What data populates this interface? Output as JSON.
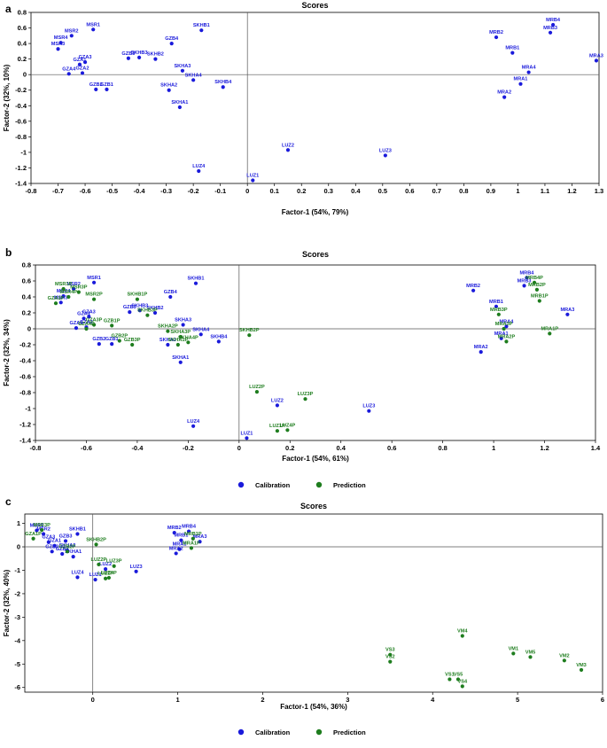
{
  "figure": {
    "panel_labels": [
      "a",
      "b",
      "c"
    ]
  },
  "colors": {
    "calibration": "#1a1adb",
    "prediction": "#1e7d1e",
    "axis": "#000000",
    "zero_line": "#555555"
  },
  "chart_data": [
    {
      "panel": "a",
      "type": "scatter",
      "title": "Scores",
      "xlabel": "Factor-1 (54%, 79%)",
      "ylabel": "Factor-2 (32%, 10%)",
      "xlim": [
        -0.8,
        1.3
      ],
      "ylim": [
        -1.4,
        0.8
      ],
      "xticks": [
        -0.8,
        -0.7,
        -0.6,
        -0.5,
        -0.4,
        -0.3,
        -0.2,
        -0.1,
        0,
        0.1,
        0.2,
        0.3,
        0.4,
        0.5,
        0.6,
        0.7,
        0.8,
        0.9,
        1,
        1.1,
        1.2,
        1.3
      ],
      "yticks": [
        -1.4,
        -1.2,
        -1,
        -0.8,
        -0.6,
        -0.4,
        -0.2,
        0,
        0.2,
        0.4,
        0.6,
        0.8
      ],
      "legend": null,
      "series": [
        {
          "name": "Calibration",
          "points": [
            {
              "label": "MSR1",
              "x": -0.57,
              "y": 0.58
            },
            {
              "label": "MSR2",
              "x": -0.65,
              "y": 0.5
            },
            {
              "label": "MSR4",
              "x": -0.69,
              "y": 0.41
            },
            {
              "label": "MSR3",
              "x": -0.7,
              "y": 0.33
            },
            {
              "label": "GZA3",
              "x": -0.6,
              "y": 0.16
            },
            {
              "label": "GZA1",
              "x": -0.62,
              "y": 0.13
            },
            {
              "label": "GZA4",
              "x": -0.66,
              "y": 0.01
            },
            {
              "label": "GZA2",
              "x": -0.61,
              "y": 0.02
            },
            {
              "label": "GZB2",
              "x": -0.56,
              "y": -0.19
            },
            {
              "label": "GZB1",
              "x": -0.52,
              "y": -0.19
            },
            {
              "label": "GZB3",
              "x": -0.44,
              "y": 0.21
            },
            {
              "label": "SKHB3",
              "x": -0.4,
              "y": 0.22
            },
            {
              "label": "SKHB2",
              "x": -0.34,
              "y": 0.2
            },
            {
              "label": "GZB4",
              "x": -0.28,
              "y": 0.4
            },
            {
              "label": "SKHB1",
              "x": -0.17,
              "y": 0.57
            },
            {
              "label": "SKHA3",
              "x": -0.24,
              "y": 0.05
            },
            {
              "label": "SKHA4",
              "x": -0.2,
              "y": -0.07
            },
            {
              "label": "SKHB4",
              "x": -0.09,
              "y": -0.16
            },
            {
              "label": "SKHA2",
              "x": -0.29,
              "y": -0.2
            },
            {
              "label": "SKHA1",
              "x": -0.25,
              "y": -0.42
            },
            {
              "label": "LUZ4",
              "x": -0.18,
              "y": -1.24
            },
            {
              "label": "LUZ1",
              "x": 0.02,
              "y": -1.36
            },
            {
              "label": "LUZ2",
              "x": 0.15,
              "y": -0.97
            },
            {
              "label": "LUZ3",
              "x": 0.51,
              "y": -1.04
            },
            {
              "label": "MRB2",
              "x": 0.92,
              "y": 0.48
            },
            {
              "label": "MRB1",
              "x": 0.98,
              "y": 0.28
            },
            {
              "label": "MRB4",
              "x": 1.13,
              "y": 0.64
            },
            {
              "label": "MRB3",
              "x": 1.12,
              "y": 0.54
            },
            {
              "label": "MRA3",
              "x": 1.29,
              "y": 0.18
            },
            {
              "label": "MRA4",
              "x": 1.04,
              "y": 0.03
            },
            {
              "label": "MRA1",
              "x": 1.01,
              "y": -0.12
            },
            {
              "label": "MRA2",
              "x": 0.95,
              "y": -0.29
            }
          ]
        }
      ]
    },
    {
      "panel": "b",
      "type": "scatter",
      "title": "Scores",
      "xlabel": "Factor-1 (54%, 61%)",
      "ylabel": "Factor-2 (32%, 34%)",
      "xlim": [
        -0.8,
        1.4
      ],
      "ylim": [
        -1.4,
        0.8
      ],
      "xticks": [
        -0.8,
        -0.6,
        -0.4,
        -0.2,
        0,
        0.2,
        0.4,
        0.6,
        0.8,
        1,
        1.2,
        1.4
      ],
      "yticks": [
        -1.4,
        -1.2,
        -1,
        -0.8,
        -0.6,
        -0.4,
        -0.2,
        0,
        0.2,
        0.4,
        0.6,
        0.8
      ],
      "legend": [
        "Calibration",
        "Prediction"
      ],
      "series": [
        {
          "name": "Calibration",
          "points": [
            {
              "label": "MSR1",
              "x": -0.57,
              "y": 0.58
            },
            {
              "label": "MSR2",
              "x": -0.65,
              "y": 0.5
            },
            {
              "label": "MSR4",
              "x": -0.69,
              "y": 0.41
            },
            {
              "label": "MSR3",
              "x": -0.7,
              "y": 0.33
            },
            {
              "label": "GZA3",
              "x": -0.59,
              "y": 0.15
            },
            {
              "label": "GZA1",
              "x": -0.61,
              "y": 0.13
            },
            {
              "label": "GZA4",
              "x": -0.64,
              "y": 0.01
            },
            {
              "label": "GZA2",
              "x": -0.6,
              "y": 0.02
            },
            {
              "label": "GZB2",
              "x": -0.55,
              "y": -0.19
            },
            {
              "label": "GZB1",
              "x": -0.5,
              "y": -0.19
            },
            {
              "label": "GZB3",
              "x": -0.43,
              "y": 0.21
            },
            {
              "label": "SKHB3",
              "x": -0.39,
              "y": 0.23
            },
            {
              "label": "SKHB2",
              "x": -0.33,
              "y": 0.2
            },
            {
              "label": "GZB4",
              "x": -0.27,
              "y": 0.4
            },
            {
              "label": "SKHB1",
              "x": -0.17,
              "y": 0.57
            },
            {
              "label": "SKHA3",
              "x": -0.22,
              "y": 0.05
            },
            {
              "label": "SKHA4",
              "x": -0.15,
              "y": -0.07
            },
            {
              "label": "SKHB4",
              "x": -0.08,
              "y": -0.16
            },
            {
              "label": "SKHA2",
              "x": -0.28,
              "y": -0.2
            },
            {
              "label": "SKHA1",
              "x": -0.23,
              "y": -0.42
            },
            {
              "label": "LUZ4",
              "x": -0.18,
              "y": -1.22
            },
            {
              "label": "LUZ1",
              "x": 0.03,
              "y": -1.37
            },
            {
              "label": "LUZ2",
              "x": 0.15,
              "y": -0.96
            },
            {
              "label": "LUZ3",
              "x": 0.51,
              "y": -1.03
            },
            {
              "label": "MRB2",
              "x": 0.92,
              "y": 0.48
            },
            {
              "label": "MRB1",
              "x": 1.01,
              "y": 0.28
            },
            {
              "label": "MRB4",
              "x": 1.13,
              "y": 0.64
            },
            {
              "label": "MRB3",
              "x": 1.12,
              "y": 0.54
            },
            {
              "label": "MRA3",
              "x": 1.29,
              "y": 0.18
            },
            {
              "label": "MRA4",
              "x": 1.05,
              "y": 0.03
            },
            {
              "label": "MRA1",
              "x": 1.03,
              "y": -0.12
            },
            {
              "label": "MRA2",
              "x": 0.95,
              "y": -0.29
            }
          ]
        },
        {
          "name": "Prediction",
          "points": [
            {
              "label": "MSR1P",
              "x": -0.69,
              "y": 0.5
            },
            {
              "label": "MSR3P",
              "x": -0.63,
              "y": 0.46
            },
            {
              "label": "MSR2P",
              "x": -0.57,
              "y": 0.37
            },
            {
              "label": "MSR4P",
              "x": -0.67,
              "y": 0.4
            },
            {
              "label": "GZA1P",
              "x": -0.72,
              "y": 0.32
            },
            {
              "label": "GZA4P",
              "x": -0.6,
              "y": 0.0
            },
            {
              "label": "GZA3P",
              "x": -0.57,
              "y": 0.05
            },
            {
              "label": "GZB1P",
              "x": -0.5,
              "y": 0.04
            },
            {
              "label": "GZB2P",
              "x": -0.47,
              "y": -0.15
            },
            {
              "label": "GZB3P",
              "x": -0.42,
              "y": -0.2
            },
            {
              "label": "SKHB1P",
              "x": -0.4,
              "y": 0.37
            },
            {
              "label": "SKHB3P",
              "x": -0.36,
              "y": 0.17
            },
            {
              "label": "SKHA2P",
              "x": -0.28,
              "y": -0.03
            },
            {
              "label": "SKHA3P",
              "x": -0.23,
              "y": -0.1
            },
            {
              "label": "SKHA4P",
              "x": -0.2,
              "y": -0.17
            },
            {
              "label": "SKHA1P",
              "x": -0.24,
              "y": -0.2
            },
            {
              "label": "SKHB2P",
              "x": 0.04,
              "y": -0.08
            },
            {
              "label": "LUZ2P",
              "x": 0.07,
              "y": -0.79
            },
            {
              "label": "LUZ3P",
              "x": 0.26,
              "y": -0.88
            },
            {
              "label": "LUZ4P",
              "x": 0.19,
              "y": -1.27
            },
            {
              "label": "LUZ1P",
              "x": 0.15,
              "y": -1.28
            },
            {
              "label": "MRB4P",
              "x": 1.16,
              "y": 0.58
            },
            {
              "label": "MRB2P",
              "x": 1.17,
              "y": 0.49
            },
            {
              "label": "MRB1P",
              "x": 1.18,
              "y": 0.35
            },
            {
              "label": "MRB3P",
              "x": 1.02,
              "y": 0.18
            },
            {
              "label": "MRA3P",
              "x": 1.04,
              "y": 0.0
            },
            {
              "label": "MRA1P",
              "x": 1.22,
              "y": -0.06
            },
            {
              "label": "MRA2P",
              "x": 1.05,
              "y": -0.16
            }
          ]
        }
      ]
    },
    {
      "panel": "c",
      "type": "scatter",
      "title": "Scores",
      "xlabel": "Factor-1 (54%, 36%)",
      "ylabel": "Factor-2 (32%, 40%)",
      "xlim": [
        -0.8,
        6
      ],
      "ylim": [
        -6.2,
        1.4
      ],
      "xticks": [
        0,
        1,
        2,
        3,
        4,
        5,
        6
      ],
      "yticks": [
        -6,
        -5,
        -4,
        -3,
        -2,
        -1,
        0,
        1
      ],
      "legend": [
        "Calibration",
        "Prediction"
      ],
      "series": [
        {
          "name": "Calibration",
          "points": [
            {
              "label": "MSR1",
              "x": -0.66,
              "y": 0.7
            },
            {
              "label": "MSR2",
              "x": -0.58,
              "y": 0.55
            },
            {
              "label": "GZA3",
              "x": -0.52,
              "y": 0.2
            },
            {
              "label": "GZA1",
              "x": -0.45,
              "y": 0.05
            },
            {
              "label": "GZB2",
              "x": -0.48,
              "y": -0.2
            },
            {
              "label": "GZB1",
              "x": -0.36,
              "y": -0.3
            },
            {
              "label": "GZB3",
              "x": -0.32,
              "y": 0.25
            },
            {
              "label": "SKHB1",
              "x": -0.18,
              "y": 0.55
            },
            {
              "label": "SKHA2",
              "x": -0.3,
              "y": -0.15
            },
            {
              "label": "SKHA1",
              "x": -0.23,
              "y": -0.42
            },
            {
              "label": "LUZ4",
              "x": -0.18,
              "y": -1.3
            },
            {
              "label": "LUZ1",
              "x": 0.03,
              "y": -1.4
            },
            {
              "label": "LUZ2",
              "x": 0.15,
              "y": -0.95
            },
            {
              "label": "LUZ3",
              "x": 0.51,
              "y": -1.05
            },
            {
              "label": "MRB2",
              "x": 0.96,
              "y": 0.6
            },
            {
              "label": "MRB1",
              "x": 1.04,
              "y": 0.28
            },
            {
              "label": "MRB4",
              "x": 1.13,
              "y": 0.66
            },
            {
              "label": "MRA3",
              "x": 1.26,
              "y": 0.22
            },
            {
              "label": "MRA1",
              "x": 1.02,
              "y": -0.1
            },
            {
              "label": "MRA2",
              "x": 0.98,
              "y": -0.28
            }
          ]
        },
        {
          "name": "Prediction",
          "points": [
            {
              "label": "MSR3P",
              "x": -0.6,
              "y": 0.72
            },
            {
              "label": "GZA1P",
              "x": -0.7,
              "y": 0.35
            },
            {
              "label": "GZB2P",
              "x": -0.3,
              "y": -0.2
            },
            {
              "label": "SKHB2P",
              "x": 0.04,
              "y": 0.1
            },
            {
              "label": "LUZ2P",
              "x": 0.07,
              "y": -0.75
            },
            {
              "label": "LUZ3P",
              "x": 0.25,
              "y": -0.82
            },
            {
              "label": "LUZ4P",
              "x": 0.19,
              "y": -1.32
            },
            {
              "label": "LUZ1P",
              "x": 0.15,
              "y": -1.35
            },
            {
              "label": "MRB1P",
              "x": 1.18,
              "y": 0.35
            },
            {
              "label": "MRA1P",
              "x": 1.16,
              "y": -0.05
            },
            {
              "label": "VS3",
              "x": 3.5,
              "y": -4.6
            },
            {
              "label": "VS2",
              "x": 3.5,
              "y": -4.9
            },
            {
              "label": "VM4",
              "x": 4.35,
              "y": -3.8
            },
            {
              "label": "VS1",
              "x": 4.2,
              "y": -5.65
            },
            {
              "label": "VS5",
              "x": 4.3,
              "y": -5.65
            },
            {
              "label": "VS4",
              "x": 4.35,
              "y": -5.95
            },
            {
              "label": "VM1",
              "x": 4.95,
              "y": -4.55
            },
            {
              "label": "VM5",
              "x": 5.15,
              "y": -4.7
            },
            {
              "label": "VM2",
              "x": 5.55,
              "y": -4.85
            },
            {
              "label": "VM3",
              "x": 5.75,
              "y": -5.25
            }
          ]
        }
      ]
    }
  ]
}
